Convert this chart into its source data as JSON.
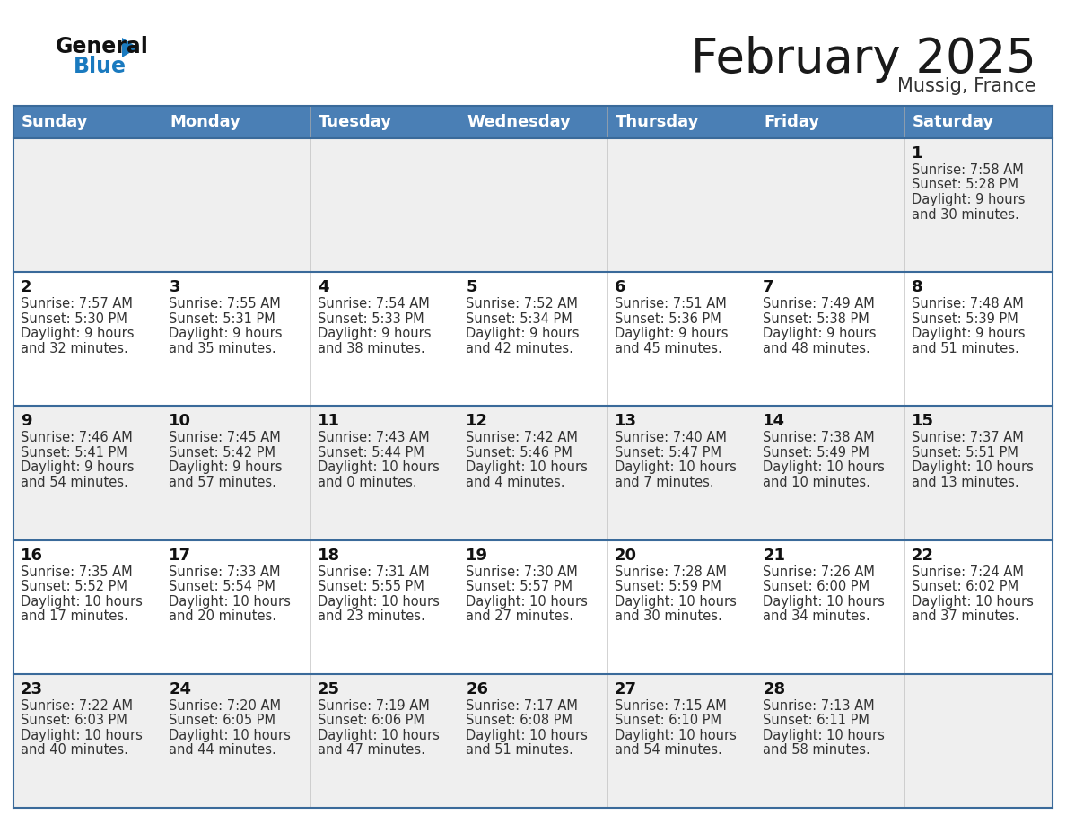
{
  "title": "February 2025",
  "subtitle": "Mussig, France",
  "days_of_week": [
    "Sunday",
    "Monday",
    "Tuesday",
    "Wednesday",
    "Thursday",
    "Friday",
    "Saturday"
  ],
  "header_bg": "#4a7fb5",
  "header_text": "#ffffff",
  "row_bg_odd": "#efefef",
  "row_bg_even": "#ffffff",
  "border_color": "#3a6a9a",
  "title_color": "#1a1a1a",
  "subtitle_color": "#333333",
  "day_num_color": "#111111",
  "cell_text_color": "#333333",
  "logo_blue_text": "#1a7abf",
  "logo_dark_text": "#111111",
  "logo_triangle": "#1a7abf",
  "calendar": [
    [
      null,
      null,
      null,
      null,
      null,
      null,
      {
        "day": 1,
        "sunrise": "7:58 AM",
        "sunset": "5:28 PM",
        "daylight": "9 hours",
        "daylight2": "and 30 minutes."
      }
    ],
    [
      {
        "day": 2,
        "sunrise": "7:57 AM",
        "sunset": "5:30 PM",
        "daylight": "9 hours",
        "daylight2": "and 32 minutes."
      },
      {
        "day": 3,
        "sunrise": "7:55 AM",
        "sunset": "5:31 PM",
        "daylight": "9 hours",
        "daylight2": "and 35 minutes."
      },
      {
        "day": 4,
        "sunrise": "7:54 AM",
        "sunset": "5:33 PM",
        "daylight": "9 hours",
        "daylight2": "and 38 minutes."
      },
      {
        "day": 5,
        "sunrise": "7:52 AM",
        "sunset": "5:34 PM",
        "daylight": "9 hours",
        "daylight2": "and 42 minutes."
      },
      {
        "day": 6,
        "sunrise": "7:51 AM",
        "sunset": "5:36 PM",
        "daylight": "9 hours",
        "daylight2": "and 45 minutes."
      },
      {
        "day": 7,
        "sunrise": "7:49 AM",
        "sunset": "5:38 PM",
        "daylight": "9 hours",
        "daylight2": "and 48 minutes."
      },
      {
        "day": 8,
        "sunrise": "7:48 AM",
        "sunset": "5:39 PM",
        "daylight": "9 hours",
        "daylight2": "and 51 minutes."
      }
    ],
    [
      {
        "day": 9,
        "sunrise": "7:46 AM",
        "sunset": "5:41 PM",
        "daylight": "9 hours",
        "daylight2": "and 54 minutes."
      },
      {
        "day": 10,
        "sunrise": "7:45 AM",
        "sunset": "5:42 PM",
        "daylight": "9 hours",
        "daylight2": "and 57 minutes."
      },
      {
        "day": 11,
        "sunrise": "7:43 AM",
        "sunset": "5:44 PM",
        "daylight": "10 hours",
        "daylight2": "and 0 minutes."
      },
      {
        "day": 12,
        "sunrise": "7:42 AM",
        "sunset": "5:46 PM",
        "daylight": "10 hours",
        "daylight2": "and 4 minutes."
      },
      {
        "day": 13,
        "sunrise": "7:40 AM",
        "sunset": "5:47 PM",
        "daylight": "10 hours",
        "daylight2": "and 7 minutes."
      },
      {
        "day": 14,
        "sunrise": "7:38 AM",
        "sunset": "5:49 PM",
        "daylight": "10 hours",
        "daylight2": "and 10 minutes."
      },
      {
        "day": 15,
        "sunrise": "7:37 AM",
        "sunset": "5:51 PM",
        "daylight": "10 hours",
        "daylight2": "and 13 minutes."
      }
    ],
    [
      {
        "day": 16,
        "sunrise": "7:35 AM",
        "sunset": "5:52 PM",
        "daylight": "10 hours",
        "daylight2": "and 17 minutes."
      },
      {
        "day": 17,
        "sunrise": "7:33 AM",
        "sunset": "5:54 PM",
        "daylight": "10 hours",
        "daylight2": "and 20 minutes."
      },
      {
        "day": 18,
        "sunrise": "7:31 AM",
        "sunset": "5:55 PM",
        "daylight": "10 hours",
        "daylight2": "and 23 minutes."
      },
      {
        "day": 19,
        "sunrise": "7:30 AM",
        "sunset": "5:57 PM",
        "daylight": "10 hours",
        "daylight2": "and 27 minutes."
      },
      {
        "day": 20,
        "sunrise": "7:28 AM",
        "sunset": "5:59 PM",
        "daylight": "10 hours",
        "daylight2": "and 30 minutes."
      },
      {
        "day": 21,
        "sunrise": "7:26 AM",
        "sunset": "6:00 PM",
        "daylight": "10 hours",
        "daylight2": "and 34 minutes."
      },
      {
        "day": 22,
        "sunrise": "7:24 AM",
        "sunset": "6:02 PM",
        "daylight": "10 hours",
        "daylight2": "and 37 minutes."
      }
    ],
    [
      {
        "day": 23,
        "sunrise": "7:22 AM",
        "sunset": "6:03 PM",
        "daylight": "10 hours",
        "daylight2": "and 40 minutes."
      },
      {
        "day": 24,
        "sunrise": "7:20 AM",
        "sunset": "6:05 PM",
        "daylight": "10 hours",
        "daylight2": "and 44 minutes."
      },
      {
        "day": 25,
        "sunrise": "7:19 AM",
        "sunset": "6:06 PM",
        "daylight": "10 hours",
        "daylight2": "and 47 minutes."
      },
      {
        "day": 26,
        "sunrise": "7:17 AM",
        "sunset": "6:08 PM",
        "daylight": "10 hours",
        "daylight2": "and 51 minutes."
      },
      {
        "day": 27,
        "sunrise": "7:15 AM",
        "sunset": "6:10 PM",
        "daylight": "10 hours",
        "daylight2": "and 54 minutes."
      },
      {
        "day": 28,
        "sunrise": "7:13 AM",
        "sunset": "6:11 PM",
        "daylight": "10 hours",
        "daylight2": "and 58 minutes."
      },
      null
    ]
  ]
}
